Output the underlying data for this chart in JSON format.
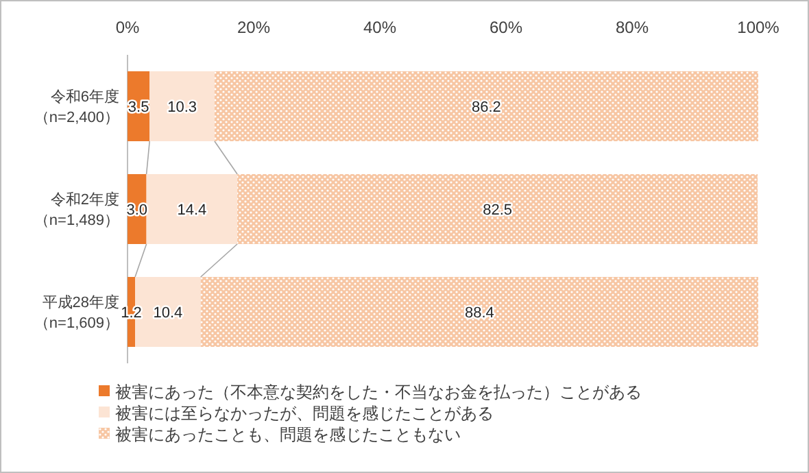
{
  "chart_data": {
    "type": "bar",
    "orientation": "horizontal",
    "stacked": true,
    "categories": [
      "令和6年度（n=2,400）",
      "令和2年度（n=1,489）",
      "平成28年度（n=1,609）"
    ],
    "series": [
      {
        "name": "被害にあった（不本意な契約をした・不当なお金を払った）ことがある",
        "color": "#ec7a2c",
        "values": [
          3.5,
          3.0,
          1.2
        ],
        "value_labels": [
          "3.5",
          "3.0",
          "1.2"
        ]
      },
      {
        "name": "被害には至らなかったが、問題を感じたことがある",
        "color": "#fce4d4",
        "values": [
          10.3,
          14.4,
          10.4
        ],
        "value_labels": [
          "10.3",
          "14.4",
          "10.4"
        ]
      },
      {
        "name": "被害にあったことも、問題を感じたこともない",
        "color": "#f7c6a3",
        "values": [
          86.2,
          82.5,
          88.4
        ],
        "value_labels": [
          "86.2",
          "82.5",
          "88.4"
        ]
      }
    ],
    "xlim": [
      0,
      100
    ],
    "xticks": [
      {
        "value": 0,
        "label": "0%"
      },
      {
        "value": 20,
        "label": "20%"
      },
      {
        "value": 40,
        "label": "40%"
      },
      {
        "value": 60,
        "label": "60%"
      },
      {
        "value": 80,
        "label": "80%"
      },
      {
        "value": 100,
        "label": "100%"
      }
    ],
    "legend": "bottom left",
    "grid": false
  }
}
